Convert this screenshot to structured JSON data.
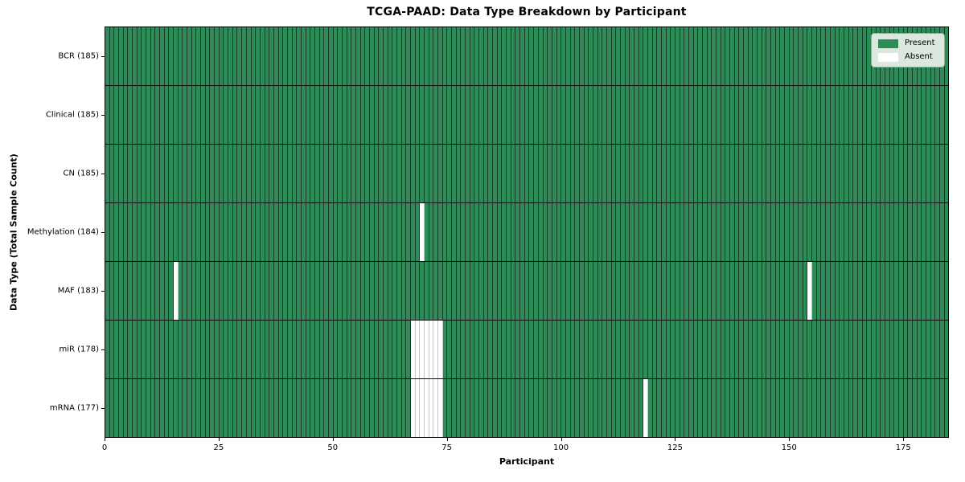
{
  "chart_data": {
    "type": "heatmap",
    "title": "TCGA-PAAD: Data Type Breakdown by Participant",
    "xlabel": "Participant",
    "ylabel": "Data Type (Total Sample Count)",
    "x_ticks": [
      0,
      25,
      50,
      75,
      100,
      125,
      150,
      175
    ],
    "x_range": [
      0,
      185
    ],
    "n_participants": 185,
    "grid": true,
    "legend_position": "upper right",
    "colors": {
      "present": "#2e8b57",
      "absent": "#ffffff",
      "cell_edge": "#000000"
    },
    "legend": [
      {
        "label": "Present",
        "color": "#2e8b57"
      },
      {
        "label": "Absent",
        "color": "#ffffff"
      }
    ],
    "rows": [
      {
        "label": "BCR (185)",
        "data_type": "BCR",
        "total_samples": 185,
        "absent_participants": []
      },
      {
        "label": "Clinical (185)",
        "data_type": "Clinical",
        "total_samples": 185,
        "absent_participants": []
      },
      {
        "label": "CN (185)",
        "data_type": "CN",
        "total_samples": 185,
        "absent_participants": []
      },
      {
        "label": "Methylation (184)",
        "data_type": "Methylation",
        "total_samples": 184,
        "absent_participants": [
          69
        ]
      },
      {
        "label": "MAF (183)",
        "data_type": "MAF",
        "total_samples": 183,
        "absent_participants": [
          15,
          154
        ]
      },
      {
        "label": "miR (178)",
        "data_type": "miR",
        "total_samples": 178,
        "absent_participants": [
          67,
          68,
          69,
          70,
          71,
          72,
          73
        ]
      },
      {
        "label": "mRNA (177)",
        "data_type": "mRNA",
        "total_samples": 177,
        "absent_participants": [
          67,
          68,
          69,
          70,
          71,
          72,
          73,
          118
        ]
      }
    ]
  }
}
